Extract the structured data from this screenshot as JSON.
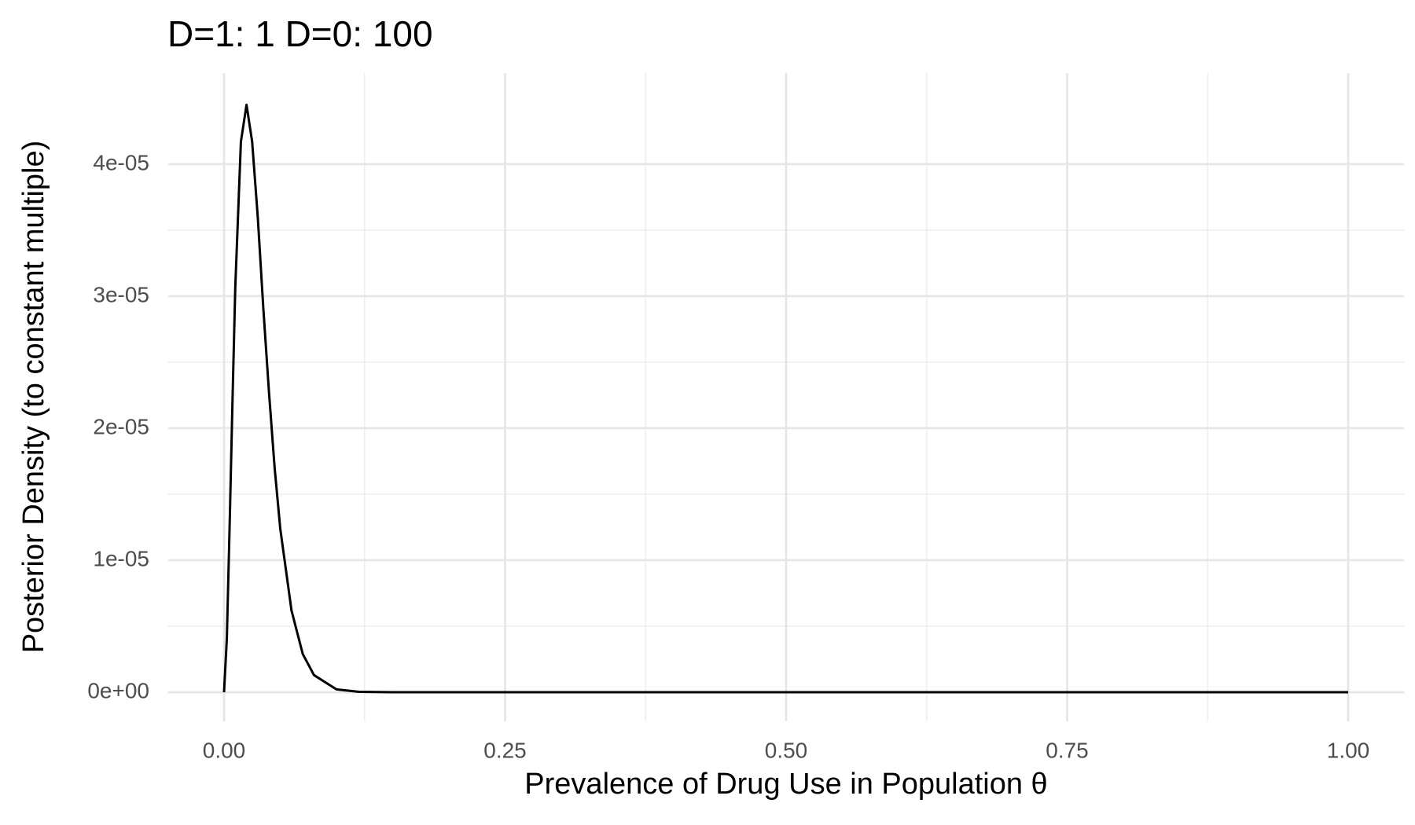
{
  "chart_data": {
    "type": "line",
    "title": "D=1: 1  D=0: 100",
    "x_label": "Prevalence of Drug Use in Population θ",
    "y_label": "Posterior Density (to constant multiple)",
    "x": [
      0,
      0.0025,
      0.005,
      0.0075,
      0.01,
      0.015,
      0.02,
      0.025,
      0.03,
      0.035,
      0.04,
      0.045,
      0.05,
      0.06,
      0.07,
      0.08,
      0.1,
      0.12,
      0.15,
      0.2,
      0.3,
      0.5,
      0.75,
      1.0
    ],
    "series": [
      {
        "color": "#000000",
        "values": [
          0,
          4.1e-06,
          1.27e-05,
          2.2e-05,
          3.07e-05,
          4.17e-05,
          4.45e-05,
          4.17e-05,
          3.6e-05,
          2.9e-05,
          2.27e-05,
          1.7e-05,
          1.24e-05,
          6.2e-06,
          2.9e-06,
          1.3e-06,
          2.2e-07,
          3e-08,
          0,
          0,
          0,
          0,
          0,
          0
        ]
      }
    ],
    "xlim": [
      -0.05,
      1.05
    ],
    "ylim": [
      -2.2e-06,
      4.69e-05
    ],
    "xticks": [
      {
        "value": 0,
        "label": "0.00"
      },
      {
        "value": 0.25,
        "label": "0.25"
      },
      {
        "value": 0.5,
        "label": "0.50"
      },
      {
        "value": 0.75,
        "label": "0.75"
      },
      {
        "value": 1,
        "label": "1.00"
      }
    ],
    "yticks": [
      {
        "value": 0,
        "label": "0e+00"
      },
      {
        "value": 1e-05,
        "label": "1e-05"
      },
      {
        "value": 2e-05,
        "label": "2e-05"
      },
      {
        "value": 3e-05,
        "label": "3e-05"
      },
      {
        "value": 4e-05,
        "label": "4e-05"
      }
    ],
    "grid": true,
    "minor_grid": true
  }
}
